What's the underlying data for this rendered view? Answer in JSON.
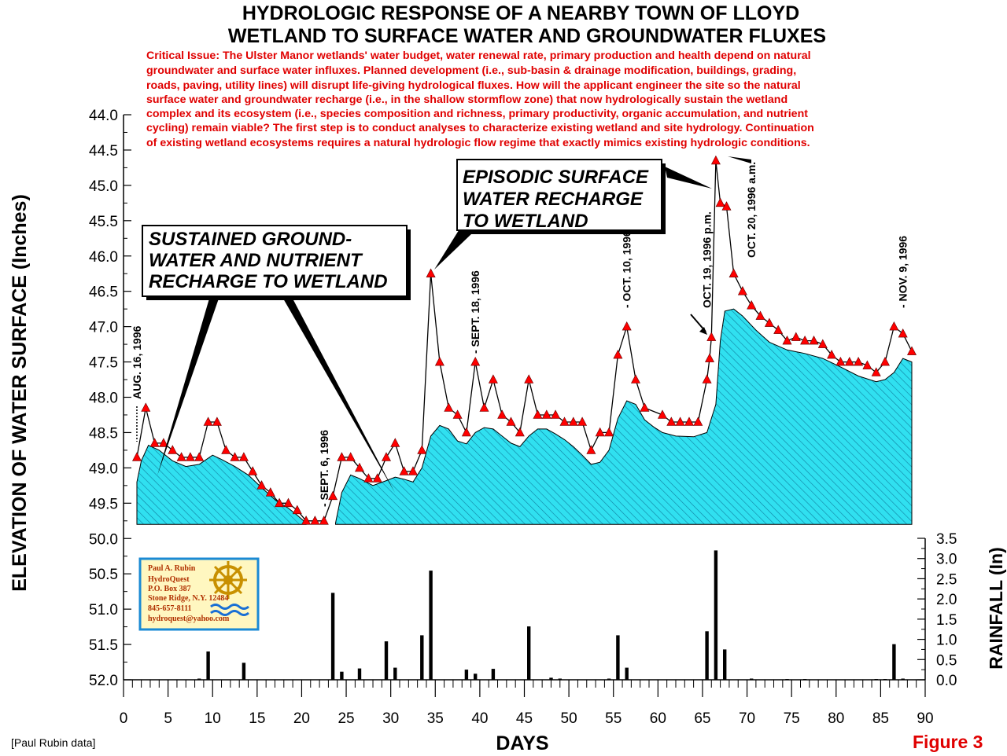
{
  "title_lines": [
    "HYDROLOGIC RESPONSE OF A NEARBY TOWN OF LLOYD",
    "WETLAND TO SURFACE WATER AND GROUNDWATER FLUXES"
  ],
  "critical_issue_lines": [
    "Critical Issue:  The Ulster Manor wetlands' water budget, water renewal rate, primary production and health depend on natural",
    "groundwater and surface water influxes.  Planned development (i.e., sub-basin & drainage modification, buildings, grading,",
    "roads, paving, utility lines) will disrupt life-giving hydrological fluxes.  How will the applicant engineer the site so the natural",
    "surface water and groundwater recharge (i.e., in the shallow stormflow zone) that now hydrologically sustain the wetland",
    "complex and its ecosystem (i.e., species composition and richness, primary productivity, organic accumulation, and nutrient",
    "cycling) remain viable?  The first step is to conduct analyses to characterize existing wetland and site hydrology.  Continuation",
    "of existing wetland ecosystems requires a natural hydrologic flow regime that exactly mimics existing hydrologic conditions."
  ],
  "callouts": {
    "sustained": [
      "SUSTAINED GROUND-",
      "WATER AND NUTRIENT",
      "RECHARGE TO WETLAND"
    ],
    "episodic": [
      "EPISODIC SURFACE",
      "WATER RECHARGE",
      "TO WETLAND"
    ]
  },
  "date_annotations": [
    {
      "text": "AUG. 16, 1996",
      "x": 1.5
    },
    {
      "text": "- SEPT. 6, 1996",
      "x": 22.5
    },
    {
      "text": "- SEPT. 18, 1996",
      "x": 39.5
    },
    {
      "text": "- OCT. 10, 1996",
      "x": 56.5
    },
    {
      "text": "OCT. 19, 1996 p.m.",
      "x": 65.5
    },
    {
      "text": "OCT. 20, 1996 a.m.",
      "x": 70.5
    },
    {
      "text": "- NOV. 9, 1996",
      "x": 87.5
    }
  ],
  "logo": {
    "lines": [
      "Paul A. Rubin",
      "HydroQuest",
      "P.O. Box 387",
      "Stone Ridge, N.Y. 12484",
      "845-657-8111",
      "hydroquest@yahoo.com"
    ],
    "colors": {
      "border": "#1a8ad4",
      "fill": "#fff7c0",
      "wheel": "#c89000",
      "wave": "#1a6fd4"
    }
  },
  "credit": "[Paul Rubin data]",
  "figure_label": "Figure 3",
  "colors": {
    "water_fill": "#30e0f0",
    "hatch": "#1080a0",
    "marker": "#ff0000",
    "line": "#000000",
    "text_red": "#e00000"
  },
  "chart_data": {
    "type": "line",
    "xlabel": "DAYS",
    "ylabel": "ELEVATION OF WATER SURFACE (Inches)",
    "y2label": "RAINFALL (In)",
    "xlim": [
      0,
      90
    ],
    "xticks": [
      "0",
      "5",
      "10",
      "15",
      "20",
      "25",
      "30",
      "35",
      "40",
      "45",
      "50",
      "55",
      "60",
      "65",
      "70",
      "75",
      "80",
      "85",
      "90"
    ],
    "ylim_inverted": [
      44.0,
      52.0
    ],
    "yticks": [
      "44.0",
      "44.5",
      "45.0",
      "45.5",
      "46.0",
      "46.5",
      "47.0",
      "47.5",
      "48.0",
      "48.5",
      "49.0",
      "49.5",
      "50.0",
      "50.5",
      "51.0",
      "51.5",
      "52.0"
    ],
    "y2lim": [
      0,
      3.5
    ],
    "y2ticks": [
      "0.0",
      "0.5",
      "1.0",
      "1.5",
      "2.0",
      "2.5",
      "3.0",
      "3.5"
    ],
    "series": [
      {
        "type": "line",
        "points": [
          [
            1.5,
            48.85
          ],
          [
            2.5,
            48.15
          ],
          [
            3.5,
            48.65
          ],
          [
            4.5,
            48.65
          ],
          [
            5.5,
            48.75
          ],
          [
            6.5,
            48.85
          ],
          [
            7.5,
            48.85
          ],
          [
            8.5,
            48.85
          ],
          [
            9.5,
            48.35
          ],
          [
            10.5,
            48.35
          ],
          [
            11.5,
            48.75
          ],
          [
            12.5,
            48.85
          ],
          [
            13.5,
            48.85
          ],
          [
            14.5,
            49.05
          ],
          [
            15.5,
            49.25
          ],
          [
            16.5,
            49.35
          ],
          [
            17.5,
            49.5
          ],
          [
            18.5,
            49.5
          ],
          [
            19.5,
            49.6
          ],
          [
            20.5,
            49.75
          ],
          [
            21.5,
            49.75
          ],
          [
            22.5,
            49.75
          ],
          [
            23.5,
            49.4
          ],
          [
            24.5,
            48.85
          ],
          [
            25.5,
            48.85
          ],
          [
            26.5,
            49.0
          ],
          [
            27.5,
            49.15
          ],
          [
            28.5,
            49.15
          ],
          [
            29.5,
            48.85
          ],
          [
            30.5,
            48.65
          ],
          [
            31.5,
            49.05
          ],
          [
            32.5,
            49.05
          ],
          [
            33.5,
            48.75
          ],
          [
            34.5,
            46.25
          ],
          [
            35.5,
            47.5
          ],
          [
            36.5,
            48.15
          ],
          [
            37.5,
            48.25
          ],
          [
            38.5,
            48.5
          ],
          [
            39.5,
            47.5
          ],
          [
            40.5,
            48.15
          ],
          [
            41.5,
            47.75
          ],
          [
            42.5,
            48.25
          ],
          [
            43.5,
            48.35
          ],
          [
            44.5,
            48.5
          ],
          [
            45.5,
            47.75
          ],
          [
            46.5,
            48.25
          ],
          [
            47.5,
            48.25
          ],
          [
            48.5,
            48.25
          ],
          [
            49.5,
            48.35
          ],
          [
            50.5,
            48.35
          ],
          [
            51.5,
            48.35
          ],
          [
            52.5,
            48.75
          ],
          [
            53.5,
            48.5
          ],
          [
            54.5,
            48.5
          ],
          [
            55.5,
            47.4
          ],
          [
            56.5,
            47.0
          ],
          [
            57.5,
            47.75
          ],
          [
            58.5,
            48.15
          ],
          [
            60.5,
            48.25
          ],
          [
            61.5,
            48.35
          ],
          [
            62.5,
            48.35
          ],
          [
            63.5,
            48.35
          ],
          [
            64.5,
            48.35
          ],
          [
            65.5,
            47.75
          ],
          [
            65.8,
            47.45
          ],
          [
            66.0,
            47.15
          ],
          [
            66.5,
            44.65
          ],
          [
            67.0,
            45.25
          ],
          [
            67.7,
            45.3
          ],
          [
            68.5,
            46.25
          ],
          [
            69.5,
            46.5
          ],
          [
            70.5,
            46.7
          ],
          [
            71.5,
            46.85
          ],
          [
            72.5,
            46.95
          ],
          [
            73.5,
            47.05
          ],
          [
            74.5,
            47.2
          ],
          [
            75.5,
            47.15
          ],
          [
            76.5,
            47.2
          ],
          [
            77.5,
            47.2
          ],
          [
            78.5,
            47.25
          ],
          [
            79.5,
            47.4
          ],
          [
            80.5,
            47.5
          ],
          [
            81.5,
            47.5
          ],
          [
            82.5,
            47.5
          ],
          [
            83.5,
            47.55
          ],
          [
            84.5,
            47.65
          ],
          [
            85.5,
            47.5
          ],
          [
            86.5,
            47.0
          ],
          [
            87.5,
            47.1
          ],
          [
            88.5,
            47.35
          ]
        ]
      },
      {
        "type": "area",
        "baseline": 49.8,
        "segments": [
          [
            [
              1.5,
              49.2
            ],
            [
              2.0,
              48.9
            ],
            [
              2.8,
              48.68
            ],
            [
              4.0,
              48.75
            ],
            [
              5.5,
              48.9
            ],
            [
              7.0,
              48.98
            ],
            [
              8.5,
              48.95
            ],
            [
              10.0,
              48.82
            ],
            [
              11.0,
              48.88
            ],
            [
              12.5,
              48.98
            ],
            [
              14.0,
              49.1
            ],
            [
              15.5,
              49.28
            ],
            [
              17.0,
              49.45
            ],
            [
              18.5,
              49.57
            ],
            [
              19.5,
              49.67
            ],
            [
              20.5,
              49.78
            ]
          ],
          [
            [
              23.8,
              49.78
            ],
            [
              24.5,
              49.35
            ],
            [
              25.5,
              49.1
            ],
            [
              26.5,
              49.15
            ],
            [
              28.0,
              49.25
            ],
            [
              29.5,
              49.18
            ],
            [
              30.5,
              49.13
            ],
            [
              31.5,
              49.16
            ],
            [
              32.5,
              49.2
            ],
            [
              33.5,
              49.0
            ],
            [
              34.5,
              48.55
            ],
            [
              35.5,
              48.4
            ],
            [
              36.5,
              48.45
            ],
            [
              37.5,
              48.62
            ],
            [
              38.5,
              48.66
            ],
            [
              39.5,
              48.5
            ],
            [
              40.5,
              48.43
            ],
            [
              41.5,
              48.45
            ],
            [
              42.5,
              48.55
            ],
            [
              43.5,
              48.65
            ],
            [
              44.5,
              48.7
            ],
            [
              45.5,
              48.55
            ],
            [
              46.5,
              48.45
            ],
            [
              47.5,
              48.45
            ],
            [
              48.5,
              48.52
            ],
            [
              49.5,
              48.6
            ],
            [
              50.5,
              48.7
            ],
            [
              51.5,
              48.82
            ],
            [
              52.5,
              48.95
            ],
            [
              53.5,
              48.92
            ],
            [
              54.5,
              48.75
            ],
            [
              55.5,
              48.3
            ],
            [
              56.5,
              48.05
            ],
            [
              57.5,
              48.1
            ],
            [
              58.5,
              48.32
            ],
            [
              59.5,
              48.42
            ],
            [
              60.5,
              48.5
            ],
            [
              62.0,
              48.55
            ],
            [
              64.0,
              48.56
            ],
            [
              65.5,
              48.5
            ],
            [
              66.5,
              48.1
            ],
            [
              67.0,
              47.2
            ],
            [
              67.5,
              46.78
            ],
            [
              68.5,
              46.75
            ],
            [
              69.5,
              46.85
            ],
            [
              71.0,
              47.05
            ],
            [
              72.5,
              47.22
            ],
            [
              74.5,
              47.33
            ],
            [
              76.5,
              47.38
            ],
            [
              78.5,
              47.45
            ],
            [
              80.5,
              47.57
            ],
            [
              82.5,
              47.7
            ],
            [
              84.5,
              47.78
            ],
            [
              85.5,
              47.75
            ],
            [
              86.5,
              47.65
            ],
            [
              87.5,
              47.45
            ],
            [
              88.5,
              47.5
            ],
            [
              88.5,
              49.78
            ]
          ]
        ]
      },
      {
        "type": "bar",
        "name": "rainfall",
        "points": [
          [
            8.5,
            0.03
          ],
          [
            9.5,
            0.7
          ],
          [
            13.5,
            0.42
          ],
          [
            23.5,
            2.15
          ],
          [
            24.5,
            0.2
          ],
          [
            26.5,
            0.28
          ],
          [
            29.5,
            0.95
          ],
          [
            30.5,
            0.3
          ],
          [
            33.5,
            1.1
          ],
          [
            34.5,
            2.7
          ],
          [
            38.5,
            0.25
          ],
          [
            39.5,
            0.15
          ],
          [
            41.5,
            0.27
          ],
          [
            45.5,
            1.32
          ],
          [
            48.0,
            0.05
          ],
          [
            49.0,
            0.03
          ],
          [
            54.5,
            0.03
          ],
          [
            55.5,
            1.1
          ],
          [
            56.5,
            0.3
          ],
          [
            65.5,
            1.2
          ],
          [
            66.5,
            3.2
          ],
          [
            67.5,
            0.75
          ],
          [
            70.5,
            0.03
          ],
          [
            74.5,
            0.02
          ],
          [
            76.5,
            0.02
          ],
          [
            84.5,
            0.02
          ],
          [
            85.5,
            0.02
          ],
          [
            86.5,
            0.88
          ],
          [
            87.5,
            0.03
          ]
        ]
      }
    ]
  }
}
